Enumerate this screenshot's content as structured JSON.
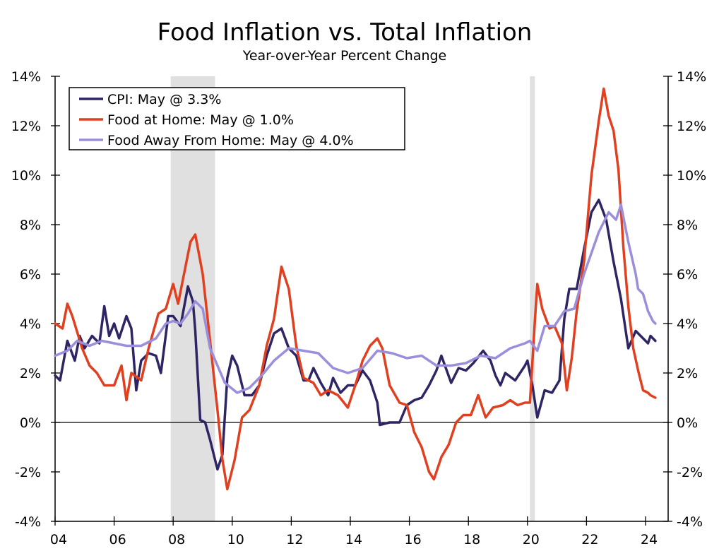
{
  "chart_data": {
    "type": "line",
    "title": "Food Inflation vs. Total Inflation",
    "subtitle": "Year-over-Year Percent Change",
    "xlabel": "",
    "ylabel": "",
    "ylim": [
      -4,
      14
    ],
    "xlim": [
      "2004-01",
      "2024-10"
    ],
    "y_ticks": [
      "14%",
      "12%",
      "10%",
      "8%",
      "6%",
      "4%",
      "2%",
      "0%",
      "-2%",
      "-4%"
    ],
    "y_tick_values": [
      14,
      12,
      10,
      8,
      6,
      4,
      2,
      0,
      -2,
      -4
    ],
    "x_ticks": [
      "04",
      "06",
      "08",
      "10",
      "12",
      "14",
      "16",
      "18",
      "20",
      "22",
      "24"
    ],
    "x_tick_years": [
      2004,
      2006,
      2008,
      2010,
      2012,
      2014,
      2016,
      2018,
      2020,
      2022,
      2024
    ],
    "grid": false,
    "dual_y_axis_mirrored": true,
    "legend_placement": "top-left",
    "recessions": [
      [
        "2007-12",
        "2009-06"
      ],
      [
        "2020-02",
        "2020-04"
      ]
    ],
    "recession_color": "#e0e0e0",
    "series": [
      {
        "name": "CPI: May @ 3.3%",
        "color": "#2e2564",
        "points": [
          [
            "2004-01",
            1.9
          ],
          [
            "2004-03",
            1.7
          ],
          [
            "2004-06",
            3.3
          ],
          [
            "2004-09",
            2.5
          ],
          [
            "2004-11",
            3.5
          ],
          [
            "2005-01",
            3.0
          ],
          [
            "2005-04",
            3.5
          ],
          [
            "2005-07",
            3.2
          ],
          [
            "2005-09",
            4.7
          ],
          [
            "2005-11",
            3.5
          ],
          [
            "2006-01",
            4.0
          ],
          [
            "2006-03",
            3.4
          ],
          [
            "2006-06",
            4.3
          ],
          [
            "2006-08",
            3.8
          ],
          [
            "2006-10",
            1.3
          ],
          [
            "2006-12",
            2.5
          ],
          [
            "2007-03",
            2.8
          ],
          [
            "2007-06",
            2.7
          ],
          [
            "2007-08",
            2.0
          ],
          [
            "2007-11",
            4.3
          ],
          [
            "2008-01",
            4.3
          ],
          [
            "2008-04",
            3.9
          ],
          [
            "2008-07",
            5.5
          ],
          [
            "2008-09",
            4.9
          ],
          [
            "2008-10",
            3.7
          ],
          [
            "2008-12",
            0.1
          ],
          [
            "2009-02",
            0.0
          ],
          [
            "2009-04",
            -0.7
          ],
          [
            "2009-07",
            -1.9
          ],
          [
            "2009-09",
            -1.3
          ],
          [
            "2009-11",
            1.8
          ],
          [
            "2010-01",
            2.7
          ],
          [
            "2010-03",
            2.3
          ],
          [
            "2010-06",
            1.1
          ],
          [
            "2010-09",
            1.1
          ],
          [
            "2010-12",
            1.5
          ],
          [
            "2011-03",
            2.7
          ],
          [
            "2011-06",
            3.6
          ],
          [
            "2011-09",
            3.8
          ],
          [
            "2011-12",
            3.0
          ],
          [
            "2012-03",
            2.7
          ],
          [
            "2012-06",
            1.7
          ],
          [
            "2012-08",
            1.7
          ],
          [
            "2012-10",
            2.2
          ],
          [
            "2013-01",
            1.6
          ],
          [
            "2013-04",
            1.1
          ],
          [
            "2013-06",
            1.8
          ],
          [
            "2013-09",
            1.2
          ],
          [
            "2013-12",
            1.5
          ],
          [
            "2014-03",
            1.5
          ],
          [
            "2014-06",
            2.1
          ],
          [
            "2014-09",
            1.7
          ],
          [
            "2014-12",
            0.8
          ],
          [
            "2015-01",
            -0.1
          ],
          [
            "2015-05",
            0.0
          ],
          [
            "2015-09",
            0.0
          ],
          [
            "2015-12",
            0.7
          ],
          [
            "2016-03",
            0.9
          ],
          [
            "2016-06",
            1.0
          ],
          [
            "2016-09",
            1.5
          ],
          [
            "2016-12",
            2.1
          ],
          [
            "2017-02",
            2.7
          ],
          [
            "2017-06",
            1.6
          ],
          [
            "2017-09",
            2.2
          ],
          [
            "2017-12",
            2.1
          ],
          [
            "2018-03",
            2.4
          ],
          [
            "2018-07",
            2.9
          ],
          [
            "2018-10",
            2.5
          ],
          [
            "2018-12",
            1.9
          ],
          [
            "2019-02",
            1.5
          ],
          [
            "2019-04",
            2.0
          ],
          [
            "2019-08",
            1.7
          ],
          [
            "2019-12",
            2.3
          ],
          [
            "2020-01",
            2.5
          ],
          [
            "2020-03",
            1.5
          ],
          [
            "2020-05",
            0.2
          ],
          [
            "2020-08",
            1.3
          ],
          [
            "2020-11",
            1.2
          ],
          [
            "2021-02",
            1.7
          ],
          [
            "2021-04",
            4.2
          ],
          [
            "2021-06",
            5.4
          ],
          [
            "2021-09",
            5.4
          ],
          [
            "2021-12",
            7.0
          ],
          [
            "2022-03",
            8.5
          ],
          [
            "2022-06",
            9.0
          ],
          [
            "2022-09",
            8.2
          ],
          [
            "2022-12",
            6.5
          ],
          [
            "2023-03",
            5.0
          ],
          [
            "2023-06",
            3.0
          ],
          [
            "2023-09",
            3.7
          ],
          [
            "2023-12",
            3.4
          ],
          [
            "2024-02",
            3.2
          ],
          [
            "2024-03",
            3.5
          ],
          [
            "2024-05",
            3.3
          ]
        ]
      },
      {
        "name": "Food at Home: May @ 1.0%",
        "color": "#e04020",
        "points": [
          [
            "2004-01",
            4.0
          ],
          [
            "2004-04",
            3.8
          ],
          [
            "2004-06",
            4.8
          ],
          [
            "2004-08",
            4.3
          ],
          [
            "2004-12",
            3.0
          ],
          [
            "2005-03",
            2.3
          ],
          [
            "2005-06",
            2.0
          ],
          [
            "2005-09",
            1.5
          ],
          [
            "2006-01",
            1.5
          ],
          [
            "2006-04",
            2.3
          ],
          [
            "2006-06",
            0.9
          ],
          [
            "2006-08",
            2.0
          ],
          [
            "2006-12",
            1.7
          ],
          [
            "2007-03",
            3.0
          ],
          [
            "2007-07",
            4.4
          ],
          [
            "2007-10",
            4.6
          ],
          [
            "2008-01",
            5.6
          ],
          [
            "2008-03",
            4.8
          ],
          [
            "2008-05",
            5.8
          ],
          [
            "2008-08",
            7.3
          ],
          [
            "2008-10",
            7.6
          ],
          [
            "2009-01",
            6.0
          ],
          [
            "2009-04",
            3.3
          ],
          [
            "2009-07",
            0.5
          ],
          [
            "2009-09",
            -1.5
          ],
          [
            "2009-11",
            -2.7
          ],
          [
            "2010-02",
            -1.5
          ],
          [
            "2010-05",
            0.2
          ],
          [
            "2010-08",
            0.5
          ],
          [
            "2010-12",
            1.5
          ],
          [
            "2011-03",
            3.1
          ],
          [
            "2011-06",
            4.2
          ],
          [
            "2011-09",
            6.3
          ],
          [
            "2011-12",
            5.4
          ],
          [
            "2012-03",
            3.1
          ],
          [
            "2012-06",
            1.8
          ],
          [
            "2012-10",
            1.6
          ],
          [
            "2013-01",
            1.1
          ],
          [
            "2013-04",
            1.3
          ],
          [
            "2013-08",
            1.1
          ],
          [
            "2013-12",
            0.6
          ],
          [
            "2014-03",
            1.5
          ],
          [
            "2014-06",
            2.5
          ],
          [
            "2014-09",
            3.1
          ],
          [
            "2014-12",
            3.4
          ],
          [
            "2015-02",
            3.0
          ],
          [
            "2015-05",
            1.5
          ],
          [
            "2015-09",
            0.8
          ],
          [
            "2015-12",
            0.7
          ],
          [
            "2016-03",
            -0.4
          ],
          [
            "2016-06",
            -1.0
          ],
          [
            "2016-09",
            -2.0
          ],
          [
            "2016-11",
            -2.3
          ],
          [
            "2017-02",
            -1.4
          ],
          [
            "2017-05",
            -0.9
          ],
          [
            "2017-08",
            0.0
          ],
          [
            "2017-11",
            0.3
          ],
          [
            "2018-02",
            0.3
          ],
          [
            "2018-05",
            1.1
          ],
          [
            "2018-08",
            0.2
          ],
          [
            "2018-11",
            0.6
          ],
          [
            "2019-03",
            0.7
          ],
          [
            "2019-06",
            0.9
          ],
          [
            "2019-09",
            0.7
          ],
          [
            "2019-12",
            0.8
          ],
          [
            "2020-02",
            0.8
          ],
          [
            "2020-04",
            4.1
          ],
          [
            "2020-05",
            5.6
          ],
          [
            "2020-07",
            4.6
          ],
          [
            "2020-10",
            3.8
          ],
          [
            "2020-12",
            3.9
          ],
          [
            "2021-03",
            3.2
          ],
          [
            "2021-05",
            1.3
          ],
          [
            "2021-07",
            2.6
          ],
          [
            "2021-09",
            4.5
          ],
          [
            "2021-12",
            6.5
          ],
          [
            "2022-03",
            10.0
          ],
          [
            "2022-06",
            12.2
          ],
          [
            "2022-08",
            13.5
          ],
          [
            "2022-10",
            12.4
          ],
          [
            "2022-12",
            11.8
          ],
          [
            "2023-02",
            10.2
          ],
          [
            "2023-04",
            7.1
          ],
          [
            "2023-06",
            4.7
          ],
          [
            "2023-08",
            3.0
          ],
          [
            "2023-10",
            2.1
          ],
          [
            "2023-12",
            1.3
          ],
          [
            "2024-02",
            1.2
          ],
          [
            "2024-03",
            1.1
          ],
          [
            "2024-05",
            1.0
          ]
        ]
      },
      {
        "name": "Food Away From Home: May @ 4.0%",
        "color": "#9b8fdc",
        "points": [
          [
            "2004-01",
            2.7
          ],
          [
            "2004-06",
            2.9
          ],
          [
            "2004-10",
            3.3
          ],
          [
            "2005-03",
            3.1
          ],
          [
            "2005-08",
            3.3
          ],
          [
            "2006-01",
            3.2
          ],
          [
            "2006-06",
            3.1
          ],
          [
            "2006-12",
            3.1
          ],
          [
            "2007-06",
            3.4
          ],
          [
            "2007-10",
            4.0
          ],
          [
            "2008-01",
            4.1
          ],
          [
            "2008-04",
            4.0
          ],
          [
            "2008-07",
            4.4
          ],
          [
            "2008-10",
            4.9
          ],
          [
            "2009-01",
            4.6
          ],
          [
            "2009-04",
            3.0
          ],
          [
            "2009-07",
            2.3
          ],
          [
            "2009-10",
            1.6
          ],
          [
            "2010-03",
            1.2
          ],
          [
            "2010-08",
            1.4
          ],
          [
            "2011-01",
            1.9
          ],
          [
            "2011-06",
            2.5
          ],
          [
            "2011-12",
            3.0
          ],
          [
            "2012-06",
            2.9
          ],
          [
            "2012-12",
            2.8
          ],
          [
            "2013-06",
            2.2
          ],
          [
            "2013-12",
            2.0
          ],
          [
            "2014-06",
            2.2
          ],
          [
            "2014-12",
            2.9
          ],
          [
            "2015-06",
            2.8
          ],
          [
            "2015-12",
            2.6
          ],
          [
            "2016-06",
            2.7
          ],
          [
            "2016-12",
            2.3
          ],
          [
            "2017-06",
            2.3
          ],
          [
            "2017-12",
            2.4
          ],
          [
            "2018-06",
            2.7
          ],
          [
            "2018-12",
            2.6
          ],
          [
            "2019-06",
            3.0
          ],
          [
            "2019-12",
            3.2
          ],
          [
            "2020-02",
            3.3
          ],
          [
            "2020-05",
            2.9
          ],
          [
            "2020-08",
            3.9
          ],
          [
            "2020-12",
            3.9
          ],
          [
            "2021-04",
            4.5
          ],
          [
            "2021-08",
            4.6
          ],
          [
            "2021-12",
            6.0
          ],
          [
            "2022-06",
            7.7
          ],
          [
            "2022-10",
            8.5
          ],
          [
            "2023-01",
            8.2
          ],
          [
            "2023-03",
            8.8
          ],
          [
            "2023-06",
            7.3
          ],
          [
            "2023-09",
            6.0
          ],
          [
            "2023-10",
            5.4
          ],
          [
            "2023-12",
            5.2
          ],
          [
            "2024-02",
            4.5
          ],
          [
            "2024-04",
            4.1
          ],
          [
            "2024-05",
            4.0
          ]
        ]
      }
    ]
  }
}
